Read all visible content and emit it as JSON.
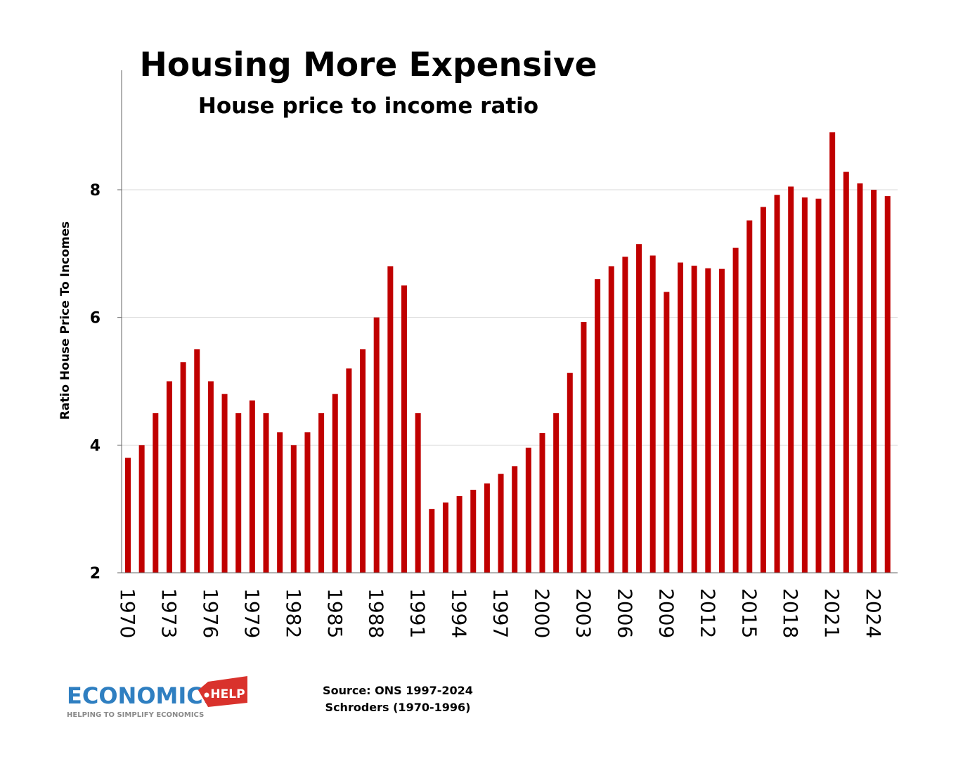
{
  "chart_data": {
    "type": "bar",
    "title": "Housing More Expensive",
    "subtitle": "House price to income ratio",
    "xlabel": "",
    "ylabel": "Ratio House Price To Incomes",
    "ylim": [
      2,
      9.5
    ],
    "yticks": [
      2,
      4,
      6,
      8
    ],
    "xtick_labels": [
      "1970",
      "1973",
      "1976",
      "1979",
      "1982",
      "1985",
      "1988",
      "1991",
      "1994",
      "1997",
      "2000",
      "2003",
      "2006",
      "2009",
      "2012",
      "2015",
      "2018",
      "2021",
      "2024"
    ],
    "grid": true,
    "bar_color": "#c00000",
    "categories": [
      1970,
      1971,
      1972,
      1973,
      1974,
      1975,
      1976,
      1977,
      1978,
      1979,
      1980,
      1981,
      1982,
      1983,
      1984,
      1985,
      1986,
      1987,
      1988,
      1989,
      1990,
      1991,
      1992,
      1993,
      1994,
      1995,
      1996,
      1997,
      1998,
      1999,
      2000,
      2001,
      2002,
      2003,
      2004,
      2005,
      2006,
      2007,
      2008,
      2009,
      2010,
      2011,
      2012,
      2013,
      2014,
      2015,
      2016,
      2017,
      2018,
      2019,
      2020,
      2021,
      2022,
      2023,
      2024,
      2025
    ],
    "values": [
      3.8,
      4.0,
      4.5,
      5.0,
      5.3,
      5.5,
      5.0,
      4.8,
      4.5,
      4.7,
      4.5,
      4.2,
      4.0,
      4.2,
      4.5,
      4.8,
      5.2,
      5.5,
      6.0,
      6.8,
      6.5,
      4.5,
      3.0,
      3.1,
      3.2,
      3.3,
      3.4,
      3.55,
      3.67,
      3.96,
      4.19,
      4.5,
      5.13,
      5.93,
      6.6,
      6.8,
      6.95,
      7.15,
      6.97,
      6.4,
      6.86,
      6.81,
      6.77,
      6.76,
      7.09,
      7.52,
      7.73,
      7.92,
      8.05,
      7.88,
      7.86,
      8.9,
      8.28,
      8.1,
      8.0,
      7.9
    ]
  },
  "source": {
    "line1": "Source: ONS 1997-2024",
    "line2": "Schroders (1970-1996)"
  },
  "logo": {
    "word": "ECONOMICS",
    "tag": "HELP",
    "tagline": "HELPING TO SIMPLIFY ECONOMICS",
    "word_color": "#2f7fc1",
    "tag_color": "#d9322c"
  }
}
